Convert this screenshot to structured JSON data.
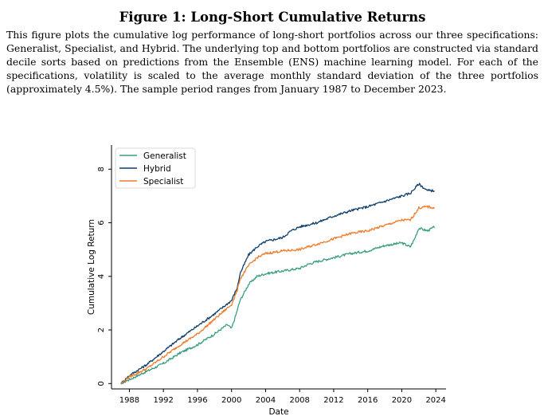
{
  "figure": {
    "title": "Figure 1: Long-Short Cumulative Returns",
    "description": "This figure plots the cumulative log performance of long-short portfolios across our three specifications: Generalist, Specialist, and Hybrid. The underlying top and bottom portfolios are constructed via standard decile sorts based on predictions from the Ensemble (ENS) machine learning model. For each of the specifications, volatility is scaled to the average monthly standard deviation of the three portfolios (approximately 4.5%). The sample period ranges from January 1987 to December 2023."
  },
  "chart_data": {
    "type": "line",
    "title": "",
    "xlabel": "Date",
    "ylabel": "Cumulative Log Return",
    "xlim": [
      1985.9,
      2025.2
    ],
    "ylim": [
      -0.2,
      8.9
    ],
    "xticks": [
      1988,
      1992,
      1996,
      2000,
      2004,
      2008,
      2012,
      2016,
      2020,
      2024
    ],
    "yticks": [
      0,
      2,
      4,
      6,
      8
    ],
    "grid": false,
    "legend_position": "top-left",
    "series": [
      {
        "name": "Generalist",
        "color": "#3a9e80",
        "points": [
          [
            1987.0,
            0.0
          ],
          [
            1988.0,
            0.15
          ],
          [
            1990.0,
            0.45
          ],
          [
            1992.0,
            0.75
          ],
          [
            1994.0,
            1.15
          ],
          [
            1996.0,
            1.45
          ],
          [
            1998.0,
            1.85
          ],
          [
            1999.5,
            2.2
          ],
          [
            2000.0,
            2.05
          ],
          [
            2000.5,
            2.55
          ],
          [
            2001.0,
            3.1
          ],
          [
            2002.0,
            3.7
          ],
          [
            2003.0,
            4.0
          ],
          [
            2004.0,
            4.1
          ],
          [
            2006.0,
            4.2
          ],
          [
            2008.0,
            4.3
          ],
          [
            2009.0,
            4.45
          ],
          [
            2010.0,
            4.55
          ],
          [
            2012.0,
            4.7
          ],
          [
            2014.0,
            4.85
          ],
          [
            2016.0,
            4.95
          ],
          [
            2018.0,
            5.15
          ],
          [
            2020.0,
            5.25
          ],
          [
            2021.0,
            5.1
          ],
          [
            2021.5,
            5.4
          ],
          [
            2022.0,
            5.8
          ],
          [
            2023.0,
            5.7
          ],
          [
            2023.9,
            5.85
          ]
        ]
      },
      {
        "name": "Hybrid",
        "color": "#0d3f6b",
        "points": [
          [
            1987.0,
            0.0
          ],
          [
            1988.0,
            0.3
          ],
          [
            1990.0,
            0.7
          ],
          [
            1992.0,
            1.2
          ],
          [
            1994.0,
            1.7
          ],
          [
            1996.0,
            2.15
          ],
          [
            1998.0,
            2.6
          ],
          [
            2000.0,
            3.1
          ],
          [
            2000.7,
            3.6
          ],
          [
            2001.0,
            4.1
          ],
          [
            2002.0,
            4.8
          ],
          [
            2003.0,
            5.1
          ],
          [
            2004.0,
            5.3
          ],
          [
            2006.0,
            5.45
          ],
          [
            2007.0,
            5.7
          ],
          [
            2008.0,
            5.85
          ],
          [
            2010.0,
            6.0
          ],
          [
            2012.0,
            6.25
          ],
          [
            2014.0,
            6.45
          ],
          [
            2016.0,
            6.6
          ],
          [
            2018.0,
            6.8
          ],
          [
            2020.0,
            7.0
          ],
          [
            2021.0,
            7.1
          ],
          [
            2022.0,
            7.45
          ],
          [
            2023.0,
            7.2
          ],
          [
            2023.9,
            7.2
          ]
        ]
      },
      {
        "name": "Specialist",
        "color": "#f07c2a",
        "points": [
          [
            1987.0,
            0.0
          ],
          [
            1988.0,
            0.25
          ],
          [
            1990.0,
            0.55
          ],
          [
            1992.0,
            1.0
          ],
          [
            1994.0,
            1.45
          ],
          [
            1996.0,
            1.85
          ],
          [
            1998.0,
            2.4
          ],
          [
            2000.0,
            2.95
          ],
          [
            2000.7,
            3.5
          ],
          [
            2001.0,
            3.9
          ],
          [
            2002.0,
            4.4
          ],
          [
            2003.0,
            4.7
          ],
          [
            2004.0,
            4.85
          ],
          [
            2006.0,
            4.95
          ],
          [
            2008.0,
            5.0
          ],
          [
            2010.0,
            5.2
          ],
          [
            2012.0,
            5.4
          ],
          [
            2014.0,
            5.6
          ],
          [
            2016.0,
            5.7
          ],
          [
            2018.0,
            5.9
          ],
          [
            2020.0,
            6.1
          ],
          [
            2021.0,
            6.1
          ],
          [
            2022.0,
            6.55
          ],
          [
            2023.0,
            6.6
          ],
          [
            2023.9,
            6.55
          ]
        ]
      }
    ]
  }
}
